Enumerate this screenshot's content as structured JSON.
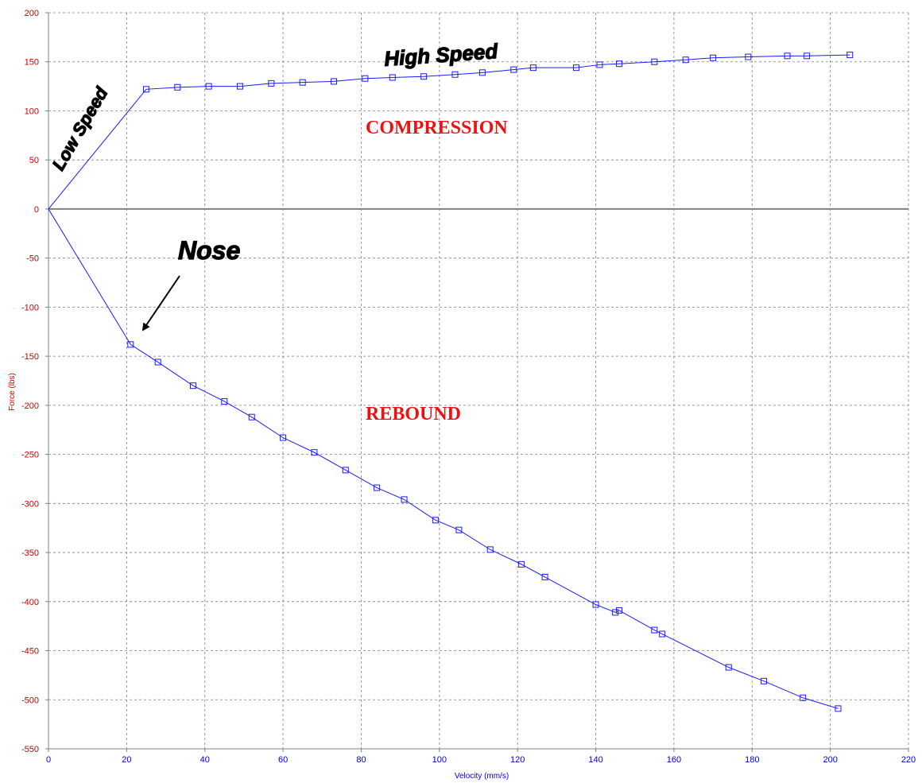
{
  "chart_data": {
    "type": "line",
    "title": "",
    "xlabel": "Velocity (mm/s)",
    "ylabel": "Force (lbs)",
    "xlim": [
      0,
      220
    ],
    "ylim": [
      -550,
      200
    ],
    "x_ticks": [
      0,
      20,
      40,
      60,
      80,
      100,
      120,
      140,
      160,
      180,
      200,
      220
    ],
    "y_ticks": [
      200,
      150,
      100,
      50,
      0,
      -50,
      -100,
      -150,
      -200,
      -250,
      -300,
      -350,
      -400,
      -450,
      -500,
      -550
    ],
    "grid": true,
    "colors": {
      "series": "#1a1aff",
      "axis_y_text": "#cc0000",
      "axis_x_text": "#0000cc",
      "region": "#ee1111",
      "zero_line": "#808080"
    },
    "series": [
      {
        "x": [
          0,
          25,
          33,
          41,
          49,
          57,
          65,
          73,
          81,
          88,
          96,
          104,
          111,
          119,
          124,
          135,
          141,
          146,
          155,
          163,
          170,
          179,
          189,
          194,
          205
        ],
        "y": [
          0,
          122,
          124,
          125,
          125,
          128,
          129,
          130,
          133,
          134,
          135,
          137,
          139,
          142,
          144,
          144,
          147,
          148,
          150,
          152,
          154,
          155,
          156,
          156,
          157
        ]
      },
      {
        "x": [
          0,
          21,
          28,
          37,
          45,
          52,
          60,
          68,
          76,
          84,
          91,
          99,
          105,
          113,
          121,
          127,
          140,
          145,
          146,
          155,
          157,
          174,
          183,
          193,
          202
        ],
        "y": [
          0,
          -138,
          -156,
          -180,
          -196,
          -212,
          -233,
          -248,
          -266,
          -284,
          -296,
          -317,
          -327,
          -347,
          -362,
          -375,
          -403,
          -411,
          -409,
          -429,
          -433,
          -467,
          -481,
          -498,
          -509
        ]
      }
    ],
    "annotations": {
      "compression": "COMPRESSION",
      "rebound": "REBOUND",
      "low_speed": "Low Speed",
      "high_speed": "High Speed",
      "nose": "Nose"
    }
  }
}
